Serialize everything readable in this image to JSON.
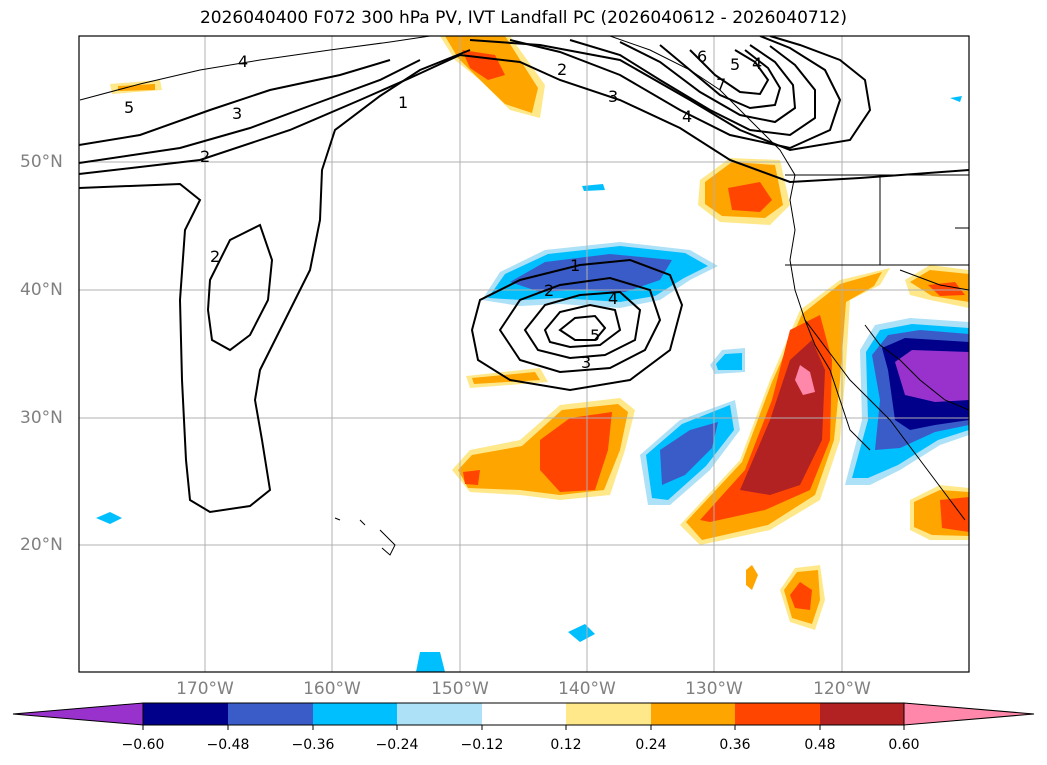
{
  "title": "2026040400 F072 300 hPa PV, IVT Landfall PC (2026040612 - 2026040712)",
  "lat_labels": [
    "50°N",
    "40°N",
    "30°N",
    "20°N"
  ],
  "lon_labels": [
    "170°W",
    "160°W",
    "150°W",
    "140°W",
    "130°W",
    "120°W"
  ],
  "colorbar": {
    "tick_labels": [
      "−0.60",
      "−0.48",
      "−0.36",
      "−0.24",
      "−0.12",
      "0.12",
      "0.24",
      "0.36",
      "0.48",
      "0.60"
    ],
    "colors": [
      "#9932CC",
      "#00008B",
      "#3A5CC9",
      "#00BFFF",
      "#ADE1F7",
      "#FFFFFF",
      "#FFE88A",
      "#FFA500",
      "#FF4500",
      "#B22222",
      "#FF88AA"
    ]
  },
  "contour_labels": [
    "4",
    "5",
    "3",
    "2",
    "1",
    "2",
    "2",
    "3",
    "6",
    "5",
    "4",
    "7",
    "4",
    "1",
    "2",
    "4",
    "5",
    "3"
  ],
  "colors": {
    "grid": "#b0b0b0",
    "contour": "#000000",
    "axis_label": "#808080"
  }
}
